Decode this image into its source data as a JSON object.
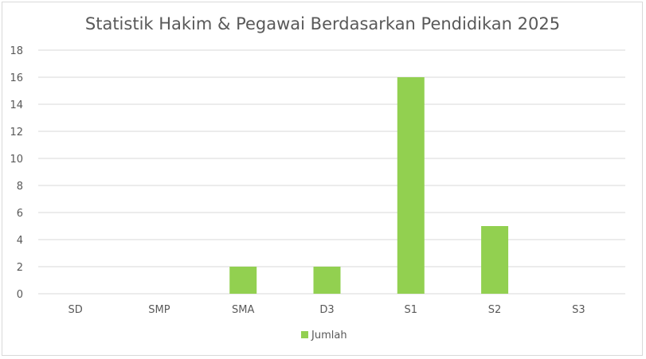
{
  "chart_data": {
    "type": "bar",
    "title": "Statistik Hakim & Pegawai Berdasarkan Pendidikan 2025",
    "categories": [
      "SD",
      "SMP",
      "SMA",
      "D3",
      "S1",
      "S2",
      "S3"
    ],
    "series": [
      {
        "name": "Jumlah",
        "values": [
          0,
          0,
          2,
          2,
          16,
          5,
          0
        ],
        "color": "#92d050"
      }
    ],
    "yticks": [
      0,
      2,
      4,
      6,
      8,
      10,
      12,
      14,
      16,
      18
    ],
    "ylim": [
      0,
      18
    ],
    "grid": true,
    "legend_position": "bottom"
  },
  "colors": {
    "grid": "#d9d9d9",
    "axis": "#d9d9d9",
    "text": "#595959",
    "border": "#d9d9d9"
  }
}
